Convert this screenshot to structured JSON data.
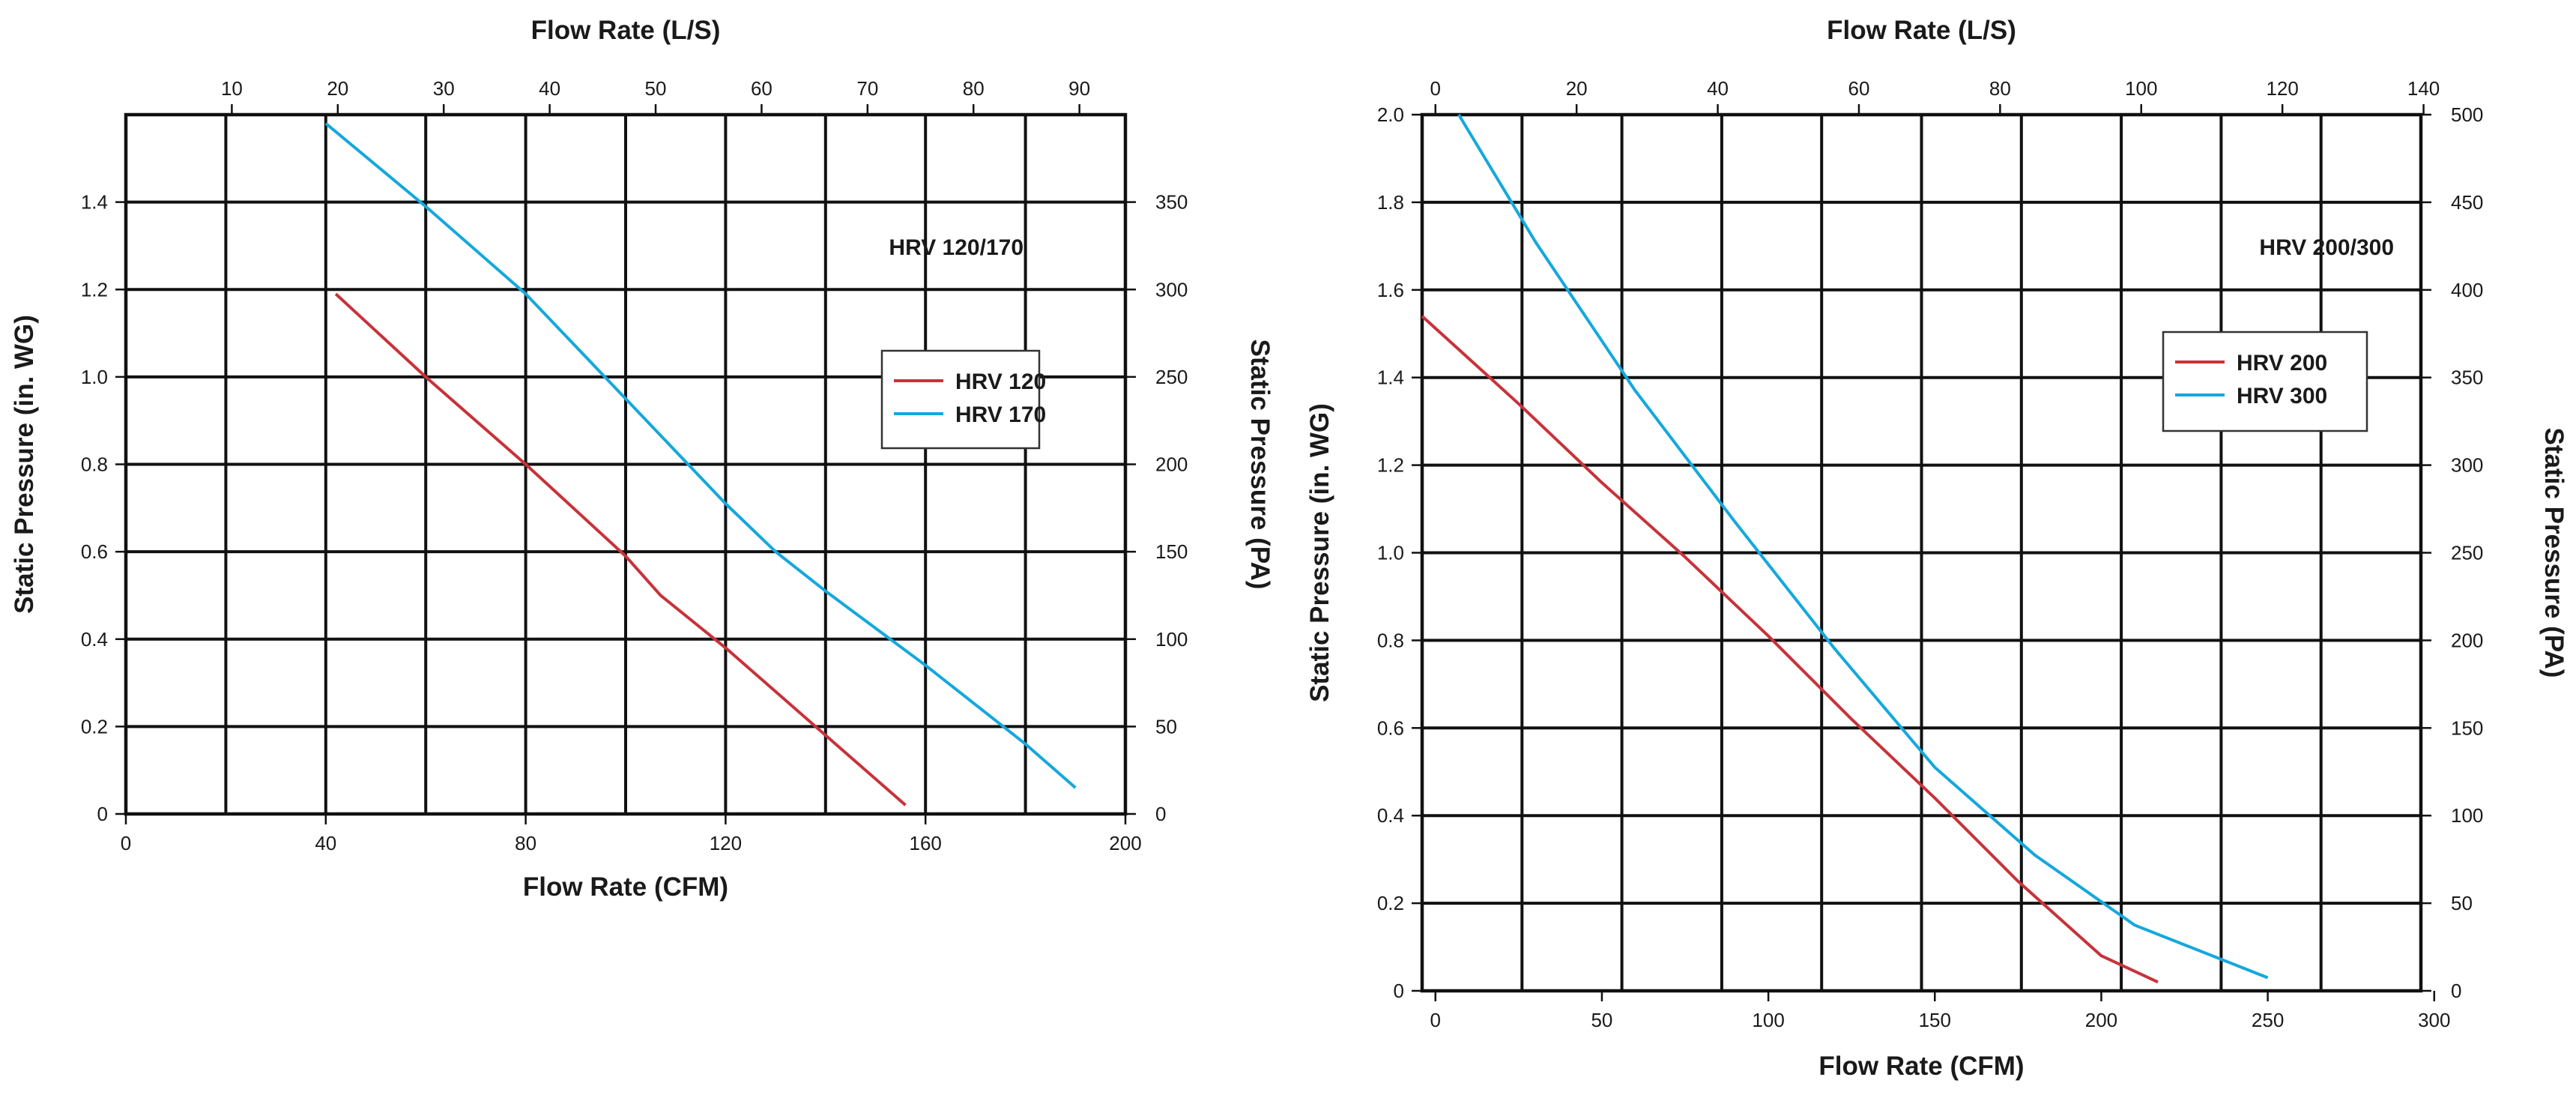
{
  "chart_data": [
    {
      "type": "line",
      "id": "left",
      "tag": "HRV 120/170",
      "xlabel": "Flow Rate (CFM)",
      "x2label": "Flow Rate (L/S)",
      "ylabel": "Static Pressure (in. WG)",
      "y2label": "Static Pressure (PA)",
      "xlim": [
        0,
        200
      ],
      "ylim": [
        0,
        1.6
      ],
      "x_ticks": [
        0,
        40,
        80,
        120,
        160,
        200
      ],
      "x_tick_labels": [
        "0",
        "40",
        "80",
        "120",
        "160",
        "200"
      ],
      "y_ticks": [
        0,
        0.2,
        0.4,
        0.6,
        0.8,
        1.0,
        1.2,
        1.4
      ],
      "y_tick_labels": [
        "0",
        "0.2",
        "0.4",
        "0.6",
        "0.8",
        "1.0",
        "1.2",
        "1.4"
      ],
      "x2_ticks": [
        10,
        20,
        30,
        40,
        50,
        60,
        70,
        80,
        90
      ],
      "x2_tick_labels": [
        "10",
        "20",
        "30",
        "40",
        "50",
        "60",
        "70",
        "80",
        "90"
      ],
      "y2_ticks": [
        0,
        50,
        100,
        150,
        200,
        250,
        300,
        350
      ],
      "y2_tick_labels": [
        "0",
        "50",
        "100",
        "150",
        "200",
        "250",
        "300",
        "350"
      ],
      "grid_x": [
        20,
        40,
        60,
        80,
        100,
        120,
        140,
        160,
        180
      ],
      "grid_y": [
        0.2,
        0.4,
        0.6,
        0.8,
        1.0,
        1.2,
        1.4
      ],
      "grid": true,
      "legend_position": "right",
      "series": [
        {
          "name": "HRV 120",
          "color": "#c8323a",
          "points": [
            [
              42,
              1.19
            ],
            [
              60,
              1.0
            ],
            [
              80,
              0.8
            ],
            [
              100,
              0.59
            ],
            [
              107,
              0.5
            ],
            [
              120,
              0.38
            ],
            [
              140,
              0.18
            ],
            [
              156,
              0.02
            ]
          ]
        },
        {
          "name": "HRV 170",
          "color": "#14a8dc",
          "points": [
            [
              40,
              1.58
            ],
            [
              60,
              1.39
            ],
            [
              80,
              1.19
            ],
            [
              100,
              0.95
            ],
            [
              120,
              0.71
            ],
            [
              130,
              0.6
            ],
            [
              140,
              0.51
            ],
            [
              160,
              0.34
            ],
            [
              180,
              0.16
            ],
            [
              190,
              0.06
            ]
          ]
        }
      ]
    },
    {
      "type": "line",
      "id": "right",
      "tag": "HRV 200/300",
      "xlabel": "Flow Rate (CFM)",
      "x2label": "Flow Rate (L/S)",
      "ylabel": "Static Pressure (in. WG)",
      "y2label": "Static Pressure (PA)",
      "xlim": [
        -4,
        296
      ],
      "ylim": [
        0,
        2.0
      ],
      "x_ticks": [
        0,
        50,
        100,
        150,
        200,
        250,
        300
      ],
      "x_tick_labels": [
        "0",
        "50",
        "100",
        "150",
        "200",
        "250",
        "300"
      ],
      "y_ticks": [
        0,
        0.2,
        0.4,
        0.6,
        0.8,
        1.0,
        1.2,
        1.4,
        1.6,
        1.8,
        2.0
      ],
      "y_tick_labels": [
        "0",
        "0.2",
        "0.4",
        "0.6",
        "0.8",
        "1.0",
        "1.2",
        "1.4",
        "1.6",
        "1.8",
        "2.0"
      ],
      "x2_ticks": [
        0,
        20,
        40,
        60,
        80,
        100,
        120,
        140
      ],
      "x2_tick_labels": [
        "0",
        "20",
        "40",
        "60",
        "80",
        "100",
        "120",
        "140"
      ],
      "y2_ticks": [
        0,
        50,
        100,
        150,
        200,
        250,
        300,
        350,
        400,
        450,
        500
      ],
      "y2_tick_labels": [
        "0",
        "50",
        "100",
        "150",
        "200",
        "250",
        "300",
        "350",
        "400",
        "450",
        "500"
      ],
      "grid_x": [
        26,
        56,
        86,
        116,
        146,
        176,
        206,
        236,
        266
      ],
      "grid_y": [
        0.2,
        0.4,
        0.6,
        0.8,
        1.0,
        1.2,
        1.4,
        1.6,
        1.8
      ],
      "grid": true,
      "legend_position": "right",
      "series": [
        {
          "name": "HRV 200",
          "color": "#c8323a",
          "points": [
            [
              -4,
              1.54
            ],
            [
              25,
              1.34
            ],
            [
              50,
              1.16
            ],
            [
              75,
              0.99
            ],
            [
              100,
              0.81
            ],
            [
              125,
              0.62
            ],
            [
              150,
              0.44
            ],
            [
              175,
              0.25
            ],
            [
              200,
              0.08
            ],
            [
              217,
              0.02
            ]
          ]
        },
        {
          "name": "HRV 300",
          "color": "#14a8dc",
          "points": [
            [
              7,
              2.0
            ],
            [
              30,
              1.71
            ],
            [
              60,
              1.37
            ],
            [
              90,
              1.07
            ],
            [
              120,
              0.78
            ],
            [
              150,
              0.51
            ],
            [
              180,
              0.31
            ],
            [
              210,
              0.15
            ],
            [
              250,
              0.03
            ]
          ]
        }
      ]
    }
  ]
}
